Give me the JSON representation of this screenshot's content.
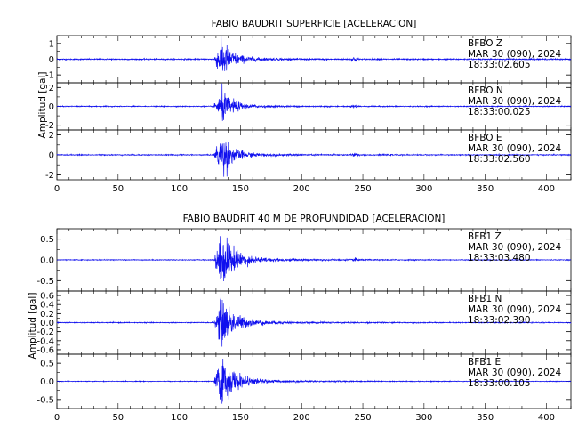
{
  "chart_data": [
    {
      "type": "line",
      "title": "FABIO BAUDRIT SUPERFICIE [ACELERACION]",
      "ylabel": "Amplitud [gal]",
      "xlim": [
        0,
        420
      ],
      "x_ticks": [
        "0",
        "50",
        "100",
        "150",
        "200",
        "250",
        "300",
        "350",
        "400"
      ],
      "series_color": "#1010ee",
      "series": [
        {
          "name": "BFBO  Z",
          "date": "MAR 30 (090), 2024",
          "time": "18:33:02.605",
          "ylim": [
            -1.5,
            1.5
          ],
          "y_ticks": [
            1,
            0,
            -1
          ],
          "y_tick_labels": [
            "1",
            "0",
            "-1"
          ],
          "noise_amp": 0.04,
          "onset": 128,
          "peak_time": 135,
          "peak_amp": 1.3,
          "decay": 8,
          "secondary": [
            [
              243,
              0.15
            ]
          ]
        },
        {
          "name": "BFBO  N",
          "date": "MAR 30 (090), 2024",
          "time": "18:33:00.025",
          "ylim": [
            -2.5,
            2.5
          ],
          "y_ticks": [
            2,
            0,
            -2
          ],
          "y_tick_labels": [
            "2",
            "0",
            "-2"
          ],
          "noise_amp": 0.05,
          "onset": 128,
          "peak_time": 135,
          "peak_amp": 1.8,
          "decay": 8,
          "secondary": [
            [
              243,
              0.2
            ]
          ]
        },
        {
          "name": "BFBO  E",
          "date": "MAR 30 (090), 2024",
          "time": "18:33:02.560",
          "ylim": [
            -2.5,
            2.5
          ],
          "y_ticks": [
            2,
            0,
            -2
          ],
          "y_tick_labels": [
            "2",
            "0",
            "-2"
          ],
          "noise_amp": 0.05,
          "onset": 128,
          "peak_time": 135,
          "peak_amp": 2.2,
          "decay": 8,
          "secondary": [
            [
              243,
              0.15
            ]
          ]
        }
      ]
    },
    {
      "type": "line",
      "title": "FABIO BAUDRIT 40 M DE PROFUNDIDAD [ACELERACION]",
      "ylabel": "Amplitud [gal]",
      "xlim": [
        0,
        420
      ],
      "x_ticks": [
        "0",
        "50",
        "100",
        "150",
        "200",
        "250",
        "300",
        "350",
        "400"
      ],
      "series_color": "#1010ee",
      "series": [
        {
          "name": "BFB1  Z",
          "date": "MAR 30 (090), 2024",
          "time": "18:33:03.480",
          "ylim": [
            -0.75,
            0.75
          ],
          "y_ticks": [
            0.5,
            0,
            -0.5
          ],
          "y_tick_labels": [
            "0.5",
            "0.0",
            "-0.5"
          ],
          "noise_amp": 0.01,
          "onset": 128,
          "peak_time": 135,
          "peak_amp": 0.7,
          "decay": 10,
          "secondary": [
            [
              245,
              0.04
            ]
          ]
        },
        {
          "name": "BFB1  N",
          "date": "MAR 30 (090), 2024",
          "time": "18:33:02.390",
          "ylim": [
            -0.7,
            0.7
          ],
          "y_ticks": [
            0.6,
            0.4,
            0.2,
            0,
            -0.2,
            -0.4,
            -0.6
          ],
          "y_tick_labels": [
            "0.6",
            "0.4",
            "0.2",
            "0.0",
            "-0.2",
            "-0.4",
            "-0.6"
          ],
          "noise_amp": 0.01,
          "onset": 128,
          "peak_time": 135,
          "peak_amp": 0.55,
          "decay": 10,
          "secondary": []
        },
        {
          "name": "BFB1  E",
          "date": "MAR 30 (090), 2024",
          "time": "18:33:00.105",
          "ylim": [
            -0.75,
            0.75
          ],
          "y_ticks": [
            0.5,
            0,
            -0.5
          ],
          "y_tick_labels": [
            "0.5",
            "0.0",
            "-0.5"
          ],
          "noise_amp": 0.01,
          "onset": 128,
          "peak_time": 135,
          "peak_amp": 0.68,
          "decay": 10,
          "secondary": []
        }
      ]
    }
  ]
}
